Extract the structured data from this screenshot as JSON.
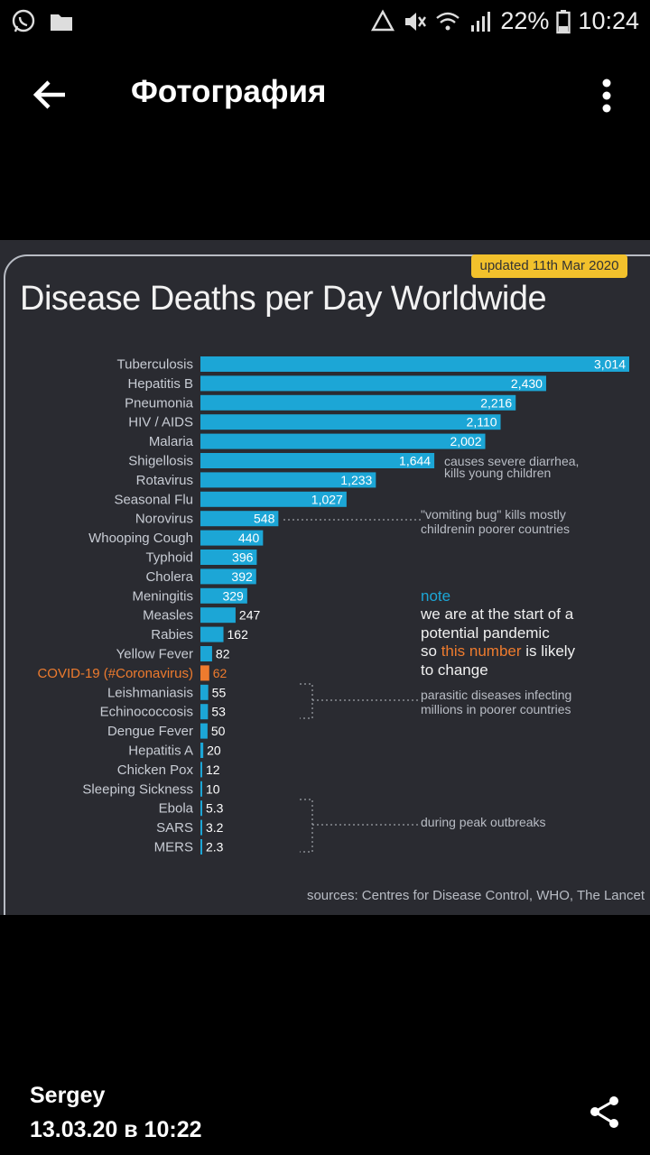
{
  "status_bar": {
    "battery": "22%",
    "time": "10:24"
  },
  "app_bar": {
    "title": "Фотография"
  },
  "infographic": {
    "badge": "updated 11th Mar 2020",
    "title": "Disease Deaths per Day Worldwide",
    "sources": "sources: Centres for Disease Control, WHO, The Lancet",
    "note_label": "note",
    "note_line1": "we are at the start of a",
    "note_line2": "potential pandemic",
    "note_line3_pre": "so",
    "note_line3_hl": "this number",
    "note_line3_post": "is likely",
    "note_line4": "to change",
    "annot_shigellosis": [
      "causes severe diarrhea,",
      "kills young children"
    ],
    "annot_norovirus": [
      "\"vomiting bug\" kills mostly",
      "childrenin poorer countries"
    ],
    "annot_parasitic": [
      "parasitic diseases infecting",
      "millions in poorer countries"
    ],
    "annot_outbreaks": "during peak outbreaks"
  },
  "chart_data": {
    "type": "bar",
    "orientation": "horizontal",
    "title": "Disease Deaths per Day Worldwide",
    "categories": [
      "Tuberculosis",
      "Hepatitis B",
      "Pneumonia",
      "HIV / AIDS",
      "Malaria",
      "Shigellosis",
      "Rotavirus",
      "Seasonal Flu",
      "Norovirus",
      "Whooping Cough",
      "Typhoid",
      "Cholera",
      "Meningitis",
      "Measles",
      "Rabies",
      "Yellow Fever",
      "COVID-19 (#Coronavirus)",
      "Leishmaniasis",
      "Echinococcosis",
      "Dengue Fever",
      "Hepatitis A",
      "Chicken Pox",
      "Sleeping Sickness",
      "Ebola",
      "SARS",
      "MERS"
    ],
    "values": [
      3014,
      2430,
      2216,
      2110,
      2002,
      1644,
      1233,
      1027,
      548,
      440,
      396,
      392,
      329,
      247,
      162,
      82,
      62,
      55,
      53,
      50,
      20,
      12,
      10,
      5.3,
      3.2,
      2.3
    ],
    "labels": [
      "3,014",
      "2,430",
      "2,216",
      "2,110",
      "2,002",
      "1,644",
      "1,233",
      "1,027",
      "548",
      "440",
      "396",
      "392",
      "329",
      "247",
      "162",
      "82",
      "62",
      "55",
      "53",
      "50",
      "20",
      "12",
      "10",
      "5.3",
      "3.2",
      "2.3"
    ],
    "highlight": "COVID-19 (#Coronavirus)",
    "colors": {
      "bar": "#1ca6d6",
      "highlight": "#ee7b2e",
      "label": "#c8ccd4"
    }
  },
  "footer": {
    "author": "Sergey",
    "date": "13.03.20 в 10:22"
  }
}
